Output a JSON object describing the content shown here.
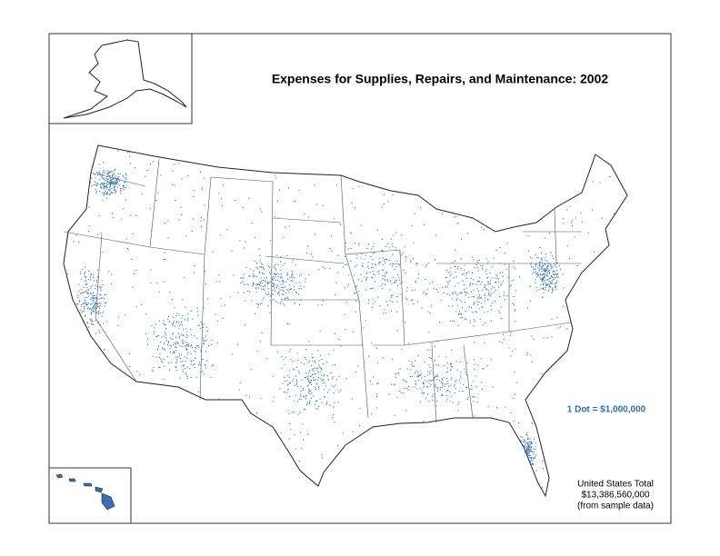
{
  "header": {
    "title": "Expenses for Supplies, Repairs, and Maintenance:  2002"
  },
  "legend": {
    "dot": "1 Dot = $1,000,000"
  },
  "total": {
    "label": "United States Total",
    "amount": "$13,386,560,000",
    "note": "(from sample data)"
  }
}
